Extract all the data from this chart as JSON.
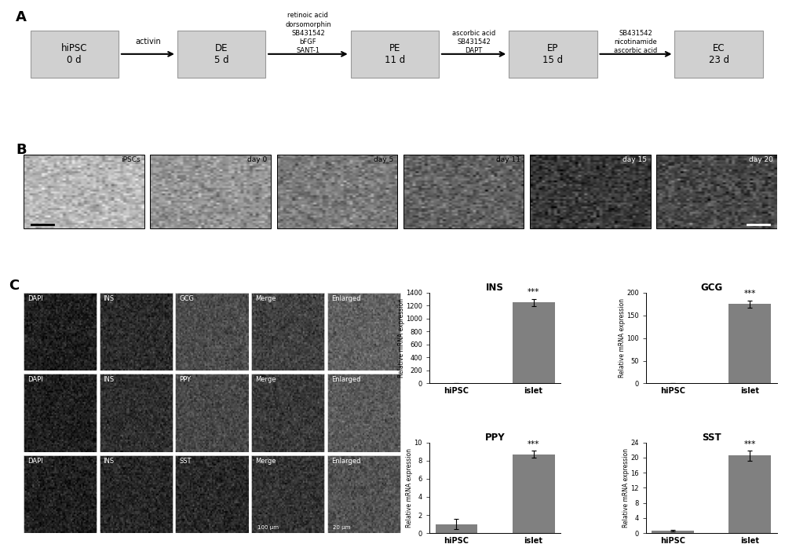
{
  "panel_A": {
    "boxes": [
      {
        "label": "hiPSC\n0 d"
      },
      {
        "label": "DE\n5 d"
      },
      {
        "label": "PE\n11 d"
      },
      {
        "label": "EP\n15 d"
      },
      {
        "label": "EC\n23 d"
      }
    ],
    "arrow_labels": [
      "activin",
      "retinoic acid\ndorsomorphin\nSB431542\nbFGF\nSANT-1",
      "ascorbic acid\nSB431542\nDAPT",
      "SB431542\nnicotinamide\nascorbic acid"
    ],
    "box_color": "#d0d0d0",
    "box_edge_color": "#999999"
  },
  "panel_B_labels": [
    "iPSCs",
    "day 0",
    "day 5",
    "day 11",
    "day 15",
    "day 20"
  ],
  "panel_C_fluo_labels": [
    [
      "DAPI",
      "INS",
      "GCG",
      "Merge",
      "Enlarged"
    ],
    [
      "DAPI",
      "INS",
      "PPY",
      "Merge",
      "Enlarged"
    ],
    [
      "DAPI",
      "INS",
      "SST",
      "Merge",
      "Enlarged"
    ]
  ],
  "panel_C_bars": {
    "INS": {
      "title": "INS",
      "hiPSC": 0.0,
      "islet": 1250,
      "islet_err": 55,
      "hiPSC_err": 0,
      "ylim": [
        0,
        1400
      ],
      "yticks": [
        0,
        200,
        400,
        600,
        800,
        1000,
        1200,
        1400
      ]
    },
    "GCG": {
      "title": "GCG",
      "hiPSC": 0.3,
      "islet": 175,
      "islet_err": 8,
      "hiPSC_err": 0,
      "ylim": [
        0,
        200
      ],
      "yticks": [
        0,
        50,
        100,
        150,
        200
      ]
    },
    "PPY": {
      "title": "PPY",
      "hiPSC": 1.0,
      "islet": 8.7,
      "islet_err": 0.4,
      "hiPSC_err": 0.55,
      "ylim": [
        0,
        10
      ],
      "yticks": [
        0,
        2,
        4,
        6,
        8,
        10
      ]
    },
    "SST": {
      "title": "SST",
      "hiPSC": 0.7,
      "islet": 20.5,
      "islet_err": 1.3,
      "hiPSC_err": 0.25,
      "ylim": [
        0,
        24
      ],
      "yticks": [
        0,
        4,
        8,
        12,
        16,
        20,
        24
      ]
    }
  },
  "bar_color": "#808080",
  "background_color": "#ffffff",
  "text_color": "#000000",
  "panel_label_size": 13,
  "axis_label": "Relative mRNA expression",
  "x_tick_labels": [
    "hiPSC",
    "islet"
  ],
  "significance_label": "***"
}
